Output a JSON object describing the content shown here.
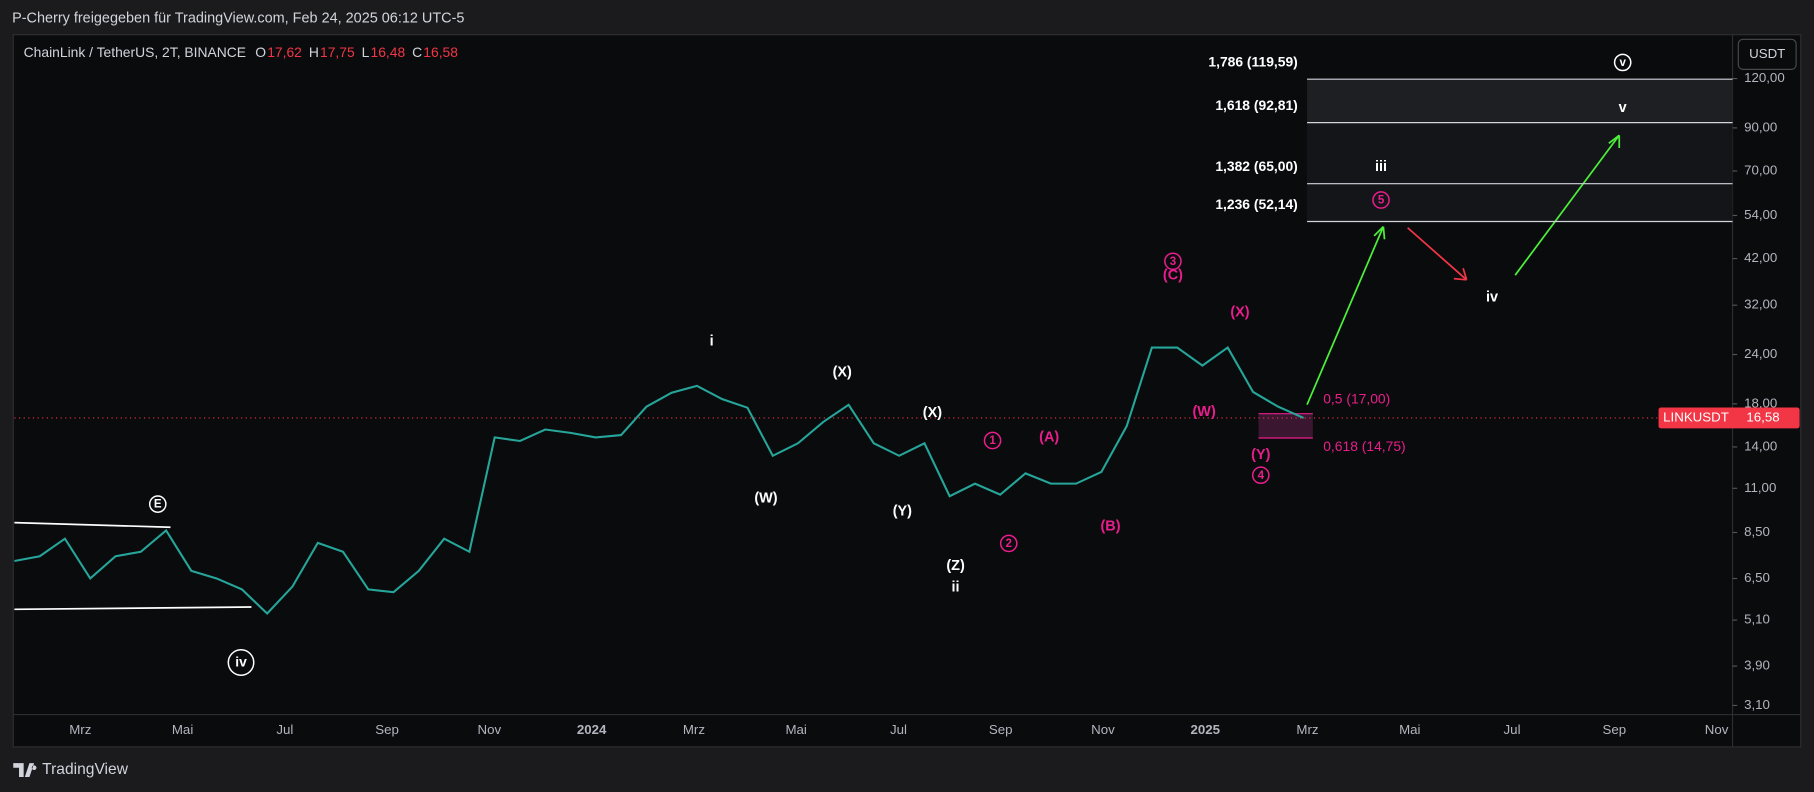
{
  "header": {
    "text": "P-Cherry freigegeben für TradingView.com, Feb 24, 2025 06:12 UTC-5"
  },
  "footer": {
    "brand": "TradingView"
  },
  "currency_button": "USDT",
  "chart_data": {
    "type": "line",
    "title": "ChainLink / TetherUS, 2T, BINANCE",
    "ohlc": {
      "labels": [
        "O",
        "H",
        "L",
        "C"
      ],
      "values": [
        17.62,
        17.75,
        16.48,
        16.58
      ],
      "value_labels": [
        "17,62",
        "17,75",
        "16,48",
        "16,58"
      ]
    },
    "color": "#26a69a",
    "values": [
      7.2,
      7.4,
      8.2,
      6.5,
      7.4,
      7.6,
      8.6,
      6.8,
      6.5,
      6.1,
      5.3,
      6.2,
      8.0,
      7.6,
      6.1,
      6.0,
      6.8,
      8.2,
      7.6,
      14.8,
      14.5,
      15.5,
      15.2,
      14.8,
      15.0,
      17.7,
      19.2,
      20.0,
      18.5,
      17.6,
      13.3,
      14.3,
      16.2,
      17.9,
      14.3,
      13.3,
      14.3,
      10.5,
      11.3,
      10.6,
      12.0,
      11.3,
      11.3,
      12.1,
      15.8,
      25.0,
      25.0,
      22.5,
      25.0,
      19.3,
      17.7,
      16.58
    ],
    "xticks": [
      "Mrz",
      "Mai",
      "Jul",
      "Sep",
      "Nov",
      "2024",
      "Mrz",
      "Mai",
      "Jul",
      "Sep",
      "Nov",
      "2025",
      "Mrz",
      "Mai",
      "Jul",
      "Sep",
      "Nov"
    ],
    "log_scale": true,
    "ylim": [
      2.94,
      155
    ],
    "yticks": [
      {
        "value": 120,
        "label": "120,00"
      },
      {
        "value": 90,
        "label": "90,00"
      },
      {
        "value": 70,
        "label": "70,00"
      },
      {
        "value": 54,
        "label": "54,00"
      },
      {
        "value": 42,
        "label": "42,00"
      },
      {
        "value": 32,
        "label": "32,00"
      },
      {
        "value": 24,
        "label": "24,00"
      },
      {
        "value": 18,
        "label": "18,00"
      },
      {
        "value": 14,
        "label": "14,00"
      },
      {
        "value": 11,
        "label": "11,00"
      },
      {
        "value": 8.5,
        "label": "8,50"
      },
      {
        "value": 6.5,
        "label": "6,50"
      },
      {
        "value": 5.1,
        "label": "5,10"
      },
      {
        "value": 3.9,
        "label": "3,90"
      },
      {
        "value": 3.1,
        "label": "3,10"
      }
    ],
    "last_price": {
      "symbol": "LINKUSDT",
      "value": 16.58,
      "label": "16,58",
      "color": "#f23645"
    },
    "fib_levels": [
      {
        "label": "1,786 (119,59)",
        "price": 119.59
      },
      {
        "label": "1,618 (92,81)",
        "price": 92.81
      },
      {
        "label": "1,382 (65,00)",
        "price": 65.0
      },
      {
        "label": "1,236 (52,14)",
        "price": 52.14
      }
    ],
    "retracements": [
      {
        "label": "0,5 (17,00)",
        "price": 17.0
      },
      {
        "label": "0,618 (14,75)",
        "price": 14.75
      }
    ],
    "annotations": [
      {
        "text": "E",
        "color": "#ffffff",
        "circled": true
      },
      {
        "text": "iv",
        "color": "#ffffff",
        "circled": true
      },
      {
        "text": "i",
        "color": "#ffffff"
      },
      {
        "text": "(W)",
        "color": "#ffffff"
      },
      {
        "text": "(X)",
        "color": "#ffffff"
      },
      {
        "text": "(Y)",
        "color": "#ffffff"
      },
      {
        "text": "(X)",
        "color": "#ffffff"
      },
      {
        "text": "(Z)",
        "color": "#ffffff"
      },
      {
        "text": "ii",
        "color": "#ffffff"
      },
      {
        "text": "1",
        "color": "#e91e8c",
        "circled": true
      },
      {
        "text": "2",
        "color": "#e91e8c",
        "circled": true
      },
      {
        "text": "(A)",
        "color": "#e91e8c"
      },
      {
        "text": "(B)",
        "color": "#e91e8c"
      },
      {
        "text": "3",
        "color": "#e91e8c",
        "circled": true
      },
      {
        "text": "(C)",
        "color": "#e91e8c"
      },
      {
        "text": "(X)",
        "color": "#e91e8c"
      },
      {
        "text": "(W)",
        "color": "#e91e8c"
      },
      {
        "text": "(Y)",
        "color": "#e91e8c"
      },
      {
        "text": "4",
        "color": "#e91e8c",
        "circled": true
      },
      {
        "text": "5",
        "color": "#e91e8c",
        "circled": true
      },
      {
        "text": "iii",
        "color": "#ffffff"
      },
      {
        "text": "iv",
        "color": "#ffffff"
      },
      {
        "text": "v",
        "color": "#ffffff"
      },
      {
        "text": "v",
        "color": "#ffffff",
        "circled": true
      }
    ]
  }
}
